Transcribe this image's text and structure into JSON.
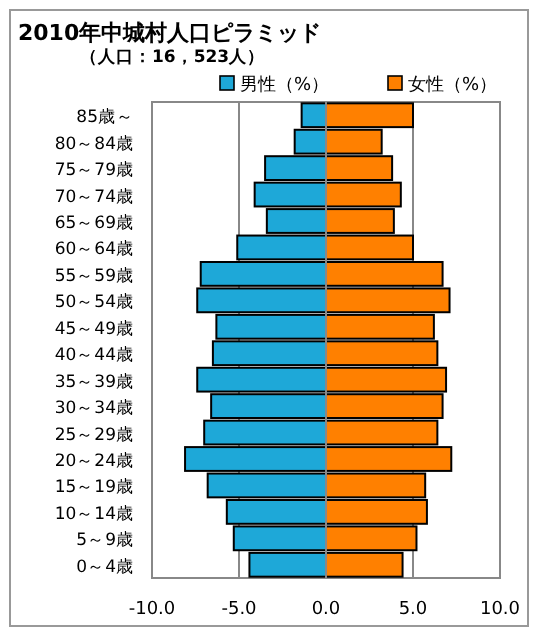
{
  "chart_data": {
    "type": "bar",
    "orientation": "horizontal",
    "stacked": true,
    "title": "2010年中城村人口ピラミッド",
    "subtitle": "（人口：16，523人）",
    "categories": [
      "85歳～",
      "80～84歳",
      "75～79歳",
      "70～74歳",
      "65～69歳",
      "60～64歳",
      "55～59歳",
      "50～54歳",
      "45～49歳",
      "40～44歳",
      "35～39歳",
      "30～34歳",
      "25～29歳",
      "20～24歳",
      "15～19歳",
      "10～14歳",
      "5～9歳",
      "0～4歳"
    ],
    "series": [
      {
        "name": "男性（%）",
        "color": "#1ea8d8",
        "values": [
          -1.4,
          -1.8,
          -3.5,
          -4.1,
          -3.4,
          -5.1,
          -7.2,
          -7.4,
          -6.3,
          -6.5,
          -7.4,
          -6.6,
          -7.0,
          -8.1,
          -6.8,
          -5.7,
          -5.3,
          -4.4
        ]
      },
      {
        "name": "女性（%）",
        "color": "#ff8000",
        "values": [
          5.0,
          3.2,
          3.8,
          4.3,
          3.9,
          5.0,
          6.7,
          7.1,
          6.2,
          6.4,
          6.9,
          6.7,
          6.4,
          7.2,
          5.7,
          5.8,
          5.2,
          4.4
        ]
      }
    ],
    "xlim": [
      -10,
      10
    ],
    "xticks": [
      {
        "value": -10,
        "label": "-10.0"
      },
      {
        "value": -5,
        "label": "-5.0"
      },
      {
        "value": 0,
        "label": "0.0"
      },
      {
        "value": 5,
        "label": "5.0"
      },
      {
        "value": 10,
        "label": "10.0"
      }
    ],
    "grid": "x",
    "legend": "top right"
  }
}
